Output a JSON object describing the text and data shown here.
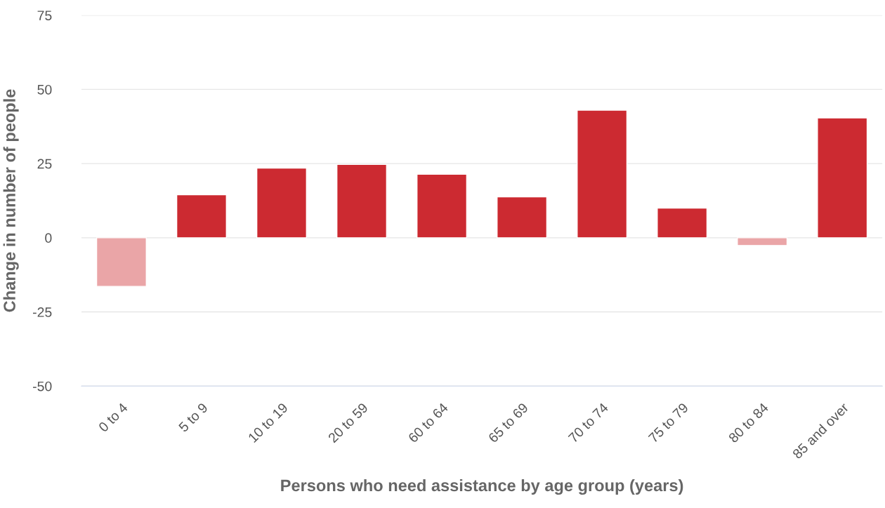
{
  "chart_data": {
    "type": "bar",
    "xlabel": "Persons who need assistance by age group (years)",
    "ylabel": "Change in number of people",
    "categories": [
      "0 to 4",
      "5 to 9",
      "10 to 19",
      "20 to 59",
      "60 to 64",
      "65 to 69",
      "70 to 74",
      "75 to 79",
      "80 to 84",
      "85 and over"
    ],
    "values": [
      -16.4,
      14.5,
      23.5,
      24.7,
      21.4,
      13.8,
      43.0,
      10.0,
      -2.6,
      40.4
    ],
    "colors": [
      "#eaa5a7",
      "#cc2a31",
      "#cc2a31",
      "#cc2a31",
      "#cc2a31",
      "#cc2a31",
      "#cc2a31",
      "#cc2a31",
      "#eaa5a7",
      "#cc2a31"
    ],
    "ylim": [
      -50,
      75
    ],
    "yticks": [
      -50,
      -25,
      0,
      25,
      50,
      75
    ],
    "grid": "y"
  }
}
